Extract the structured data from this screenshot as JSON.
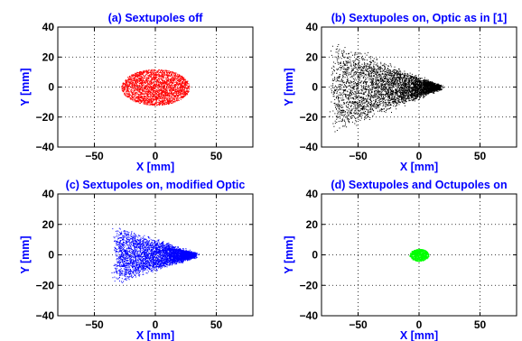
{
  "figure": {
    "background": "#ffffff"
  },
  "chart_data": [
    {
      "type": "scatter",
      "title": "(a) Sextupoles off",
      "xlabel": "X [mm]",
      "ylabel": "Y [mm]",
      "xlim": [
        -80,
        80
      ],
      "ylim": [
        -40,
        40
      ],
      "xticks": [
        -50,
        0,
        50
      ],
      "yticks": [
        -40,
        -20,
        0,
        20,
        40
      ],
      "grid": true,
      "color": "#ff0000",
      "series": [
        {
          "shape": "ellipse",
          "center": [
            0,
            0
          ],
          "x_range": [
            -28,
            28
          ],
          "y_range": [
            -12,
            12
          ]
        }
      ]
    },
    {
      "type": "scatter",
      "title": "(b) Sextupoles on, Optic as in [1]",
      "xlabel": "X [mm]",
      "ylabel": "Y [mm]",
      "xlim": [
        -80,
        80
      ],
      "ylim": [
        -40,
        40
      ],
      "xticks": [
        -50,
        0,
        50
      ],
      "yticks": [
        -40,
        -20,
        0,
        20,
        40
      ],
      "grid": true,
      "color": "#000000",
      "series": [
        {
          "shape": "cone",
          "apex": [
            15,
            0
          ],
          "base_x": -70,
          "y_range": [
            -32,
            32
          ]
        }
      ]
    },
    {
      "type": "scatter",
      "title": "(c) Sextupoles on, modified Optic",
      "xlabel": "X [mm]",
      "ylabel": "Y [mm]",
      "xlim": [
        -80,
        80
      ],
      "ylim": [
        -40,
        40
      ],
      "xticks": [
        -50,
        0,
        50
      ],
      "yticks": [
        -40,
        -20,
        0,
        20,
        40
      ],
      "grid": true,
      "color": "#0000ff",
      "series": [
        {
          "shape": "cone",
          "apex": [
            30,
            0
          ],
          "base_x": -32,
          "y_range": [
            -20,
            20
          ]
        }
      ]
    },
    {
      "type": "scatter",
      "title": "(d) Sextupoles and Octupoles on",
      "xlabel": "X [mm]",
      "ylabel": "Y [mm]",
      "xlim": [
        -80,
        80
      ],
      "ylim": [
        -40,
        40
      ],
      "xticks": [
        -50,
        0,
        50
      ],
      "yticks": [
        -40,
        -20,
        0,
        20,
        40
      ],
      "grid": true,
      "color": "#00ff00",
      "series": [
        {
          "shape": "ellipse",
          "center": [
            0,
            0
          ],
          "x_range": [
            -8,
            8
          ],
          "y_range": [
            -4,
            4
          ]
        }
      ]
    }
  ]
}
